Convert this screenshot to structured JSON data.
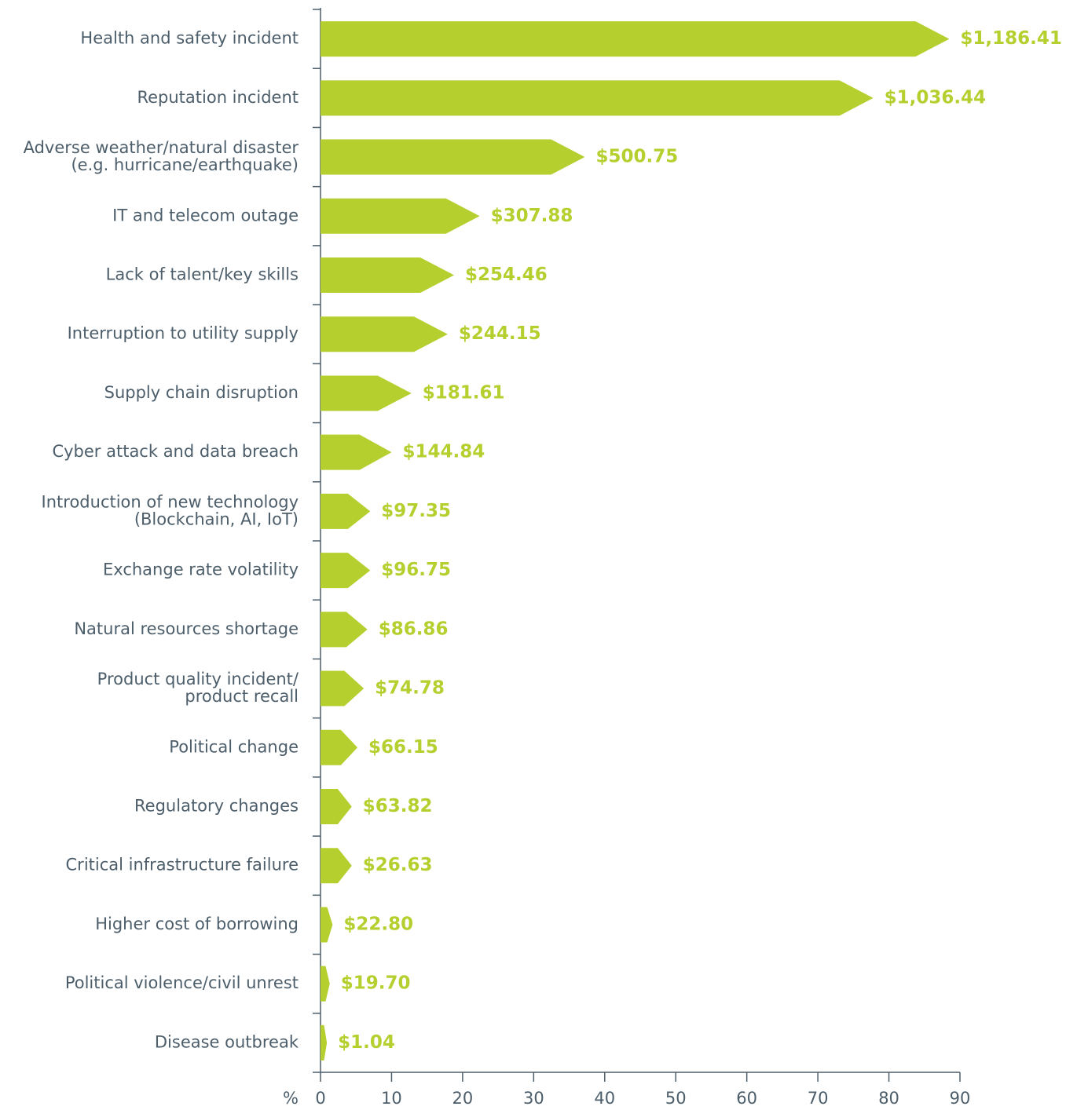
{
  "chart_data": {
    "type": "bar",
    "orientation": "horizontal",
    "xlabel": "%",
    "categories": [
      "Health and safety incident",
      "Reputation incident",
      "Adverse weather/natural disaster\n(e.g. hurricane/earthquake)",
      "IT and telecom outage",
      "Lack of talent/key skills",
      "Interruption to utility supply",
      "Supply chain disruption",
      "Cyber attack and data breach",
      "Introduction of new technology\n(Blockchain, AI, IoT)",
      "Exchange rate volatility",
      "Natural resources shortage",
      "Product quality incident/\nproduct recall",
      "Political change",
      "Regulatory changes",
      "Critical infrastructure failure",
      "Higher cost of borrowing",
      "Political violence/civil unrest",
      "Disease outbreak"
    ],
    "values": [
      88.5,
      77.8,
      37.2,
      22.4,
      18.8,
      17.9,
      12.8,
      10.0,
      7.0,
      7.0,
      6.6,
      6.1,
      5.2,
      4.4,
      4.4,
      1.7,
      1.3,
      0.9
    ],
    "value_labels": [
      "$1,186.41",
      "$1,036.44",
      "$500.75",
      "$307.88",
      "$254.46",
      "$244.15",
      "$181.61",
      "$144.84",
      "$97.35",
      "$96.75",
      "$86.86",
      "$74.78",
      "$66.15",
      "$63.82",
      "$26.63",
      "$22.80",
      "$19.70",
      "$1.04"
    ],
    "color": "#b5cf2f",
    "label_color": "#b5cf2f",
    "xlim": [
      0,
      90
    ],
    "xticks": [
      0,
      10,
      20,
      30,
      40,
      50,
      60,
      70,
      80,
      90
    ]
  }
}
